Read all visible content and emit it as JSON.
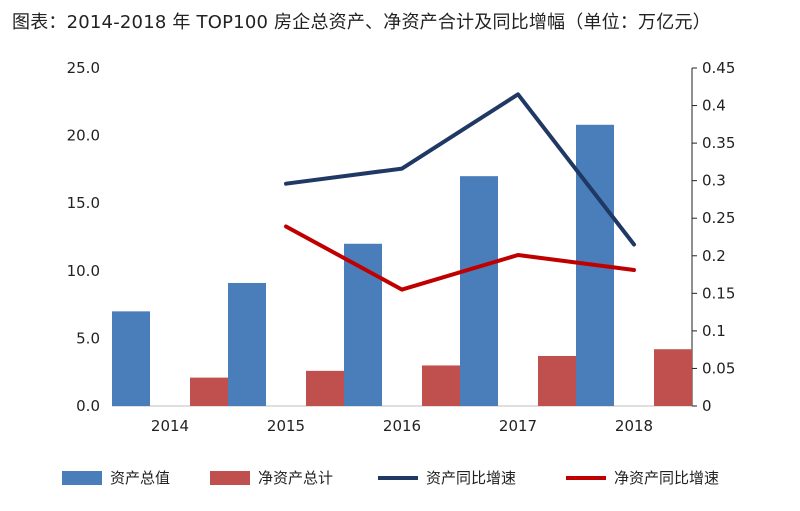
{
  "chart_data": {
    "type": "bar",
    "title": "图表：2014-2018 年 TOP100 房企总资产、净资产合计及同比增幅（单位：万亿元）",
    "categories": [
      "2014",
      "2015",
      "2016",
      "2017",
      "2018"
    ],
    "bar_series": [
      {
        "name": "资产总值",
        "color": "#4a7ebb",
        "values": [
          7.0,
          9.1,
          12.0,
          17.0,
          20.8
        ],
        "axis": "left"
      },
      {
        "name": "净资产总计",
        "color": "#c0504d",
        "values": [
          2.1,
          2.6,
          3.0,
          3.7,
          4.2
        ],
        "axis": "left"
      }
    ],
    "line_series": [
      {
        "name": "资产同比增速",
        "color": "#1f3864",
        "values": [
          null,
          0.296,
          0.316,
          0.415,
          0.215
        ],
        "axis": "right"
      },
      {
        "name": "净资产同比增速",
        "color": "#c00000",
        "values": [
          null,
          0.239,
          0.155,
          0.201,
          0.181
        ],
        "axis": "right"
      }
    ],
    "left_axis": {
      "min": 0,
      "max": 25,
      "ticks": [
        "0.0",
        "5.0",
        "10.0",
        "15.0",
        "20.0",
        "25.0"
      ]
    },
    "right_axis": {
      "min": 0,
      "max": 0.45,
      "ticks": [
        "0",
        "0.05",
        "0.1",
        "0.15",
        "0.2",
        "0.25",
        "0.3",
        "0.35",
        "0.4",
        "0.45"
      ]
    },
    "xlabel": "",
    "ylabel": "",
    "legend_position": "bottom",
    "grid": false
  }
}
